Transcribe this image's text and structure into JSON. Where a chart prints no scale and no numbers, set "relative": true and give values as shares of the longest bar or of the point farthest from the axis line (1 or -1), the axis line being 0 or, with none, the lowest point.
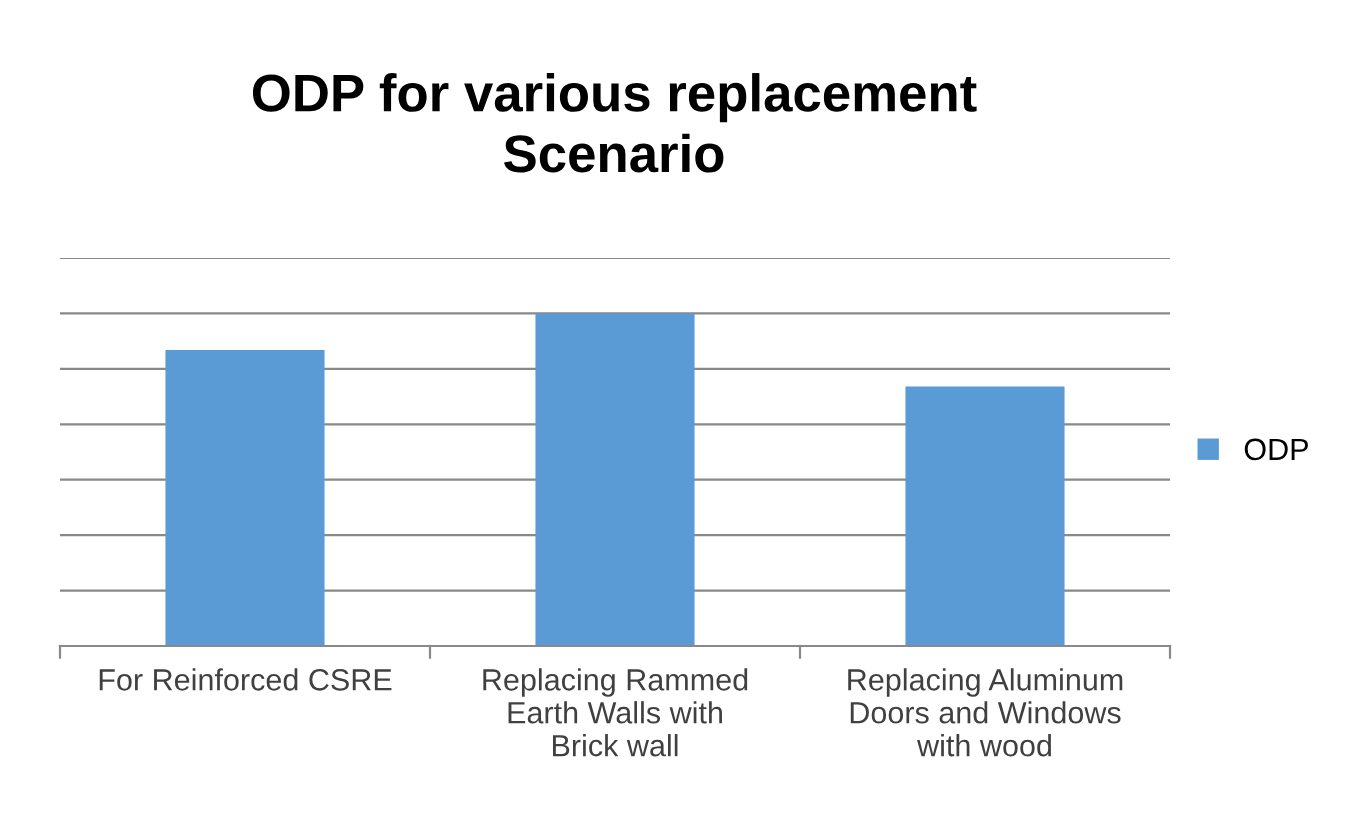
{
  "chart_data": {
    "type": "bar",
    "title": "ODP for various replacement Scenario",
    "categories": [
      "For Reinforced CSRE",
      "Replacing Rammed Earth Walls with Brick wall",
      "Replacing Aluminum Doors and Windows with wood"
    ],
    "series": [
      {
        "name": "ODP",
        "color": "#5b9bd5",
        "values": [
          0.89,
          1,
          0.78
        ]
      }
    ],
    "relative": true,
    "grid": "y",
    "legend": "right"
  }
}
